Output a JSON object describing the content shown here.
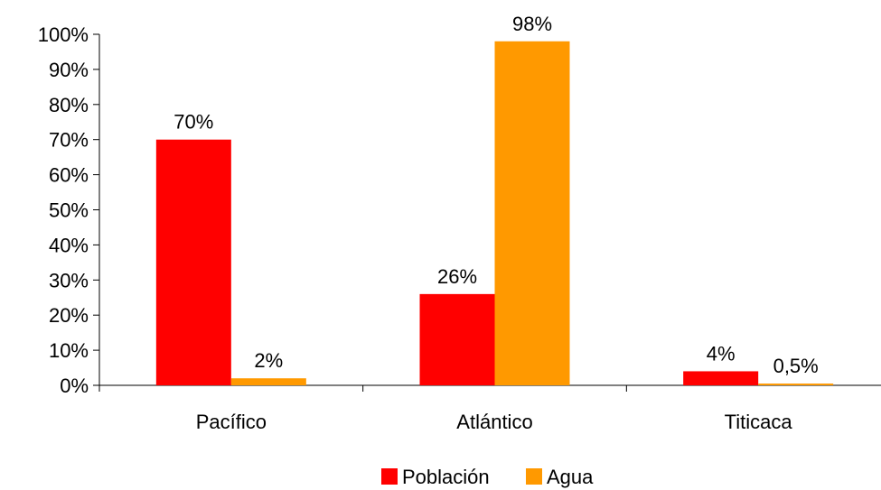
{
  "chart_data": {
    "type": "bar",
    "categories": [
      "Pacífico",
      "Atlántico",
      "Titicaca"
    ],
    "series": [
      {
        "name": "Población",
        "color": "#ff0000",
        "values": [
          70,
          26,
          4
        ],
        "labels": [
          "70%",
          "26%",
          "4%"
        ]
      },
      {
        "name": "Agua",
        "color": "#ff9900",
        "values": [
          2,
          98,
          0.5
        ],
        "labels": [
          "2%",
          "98%",
          "0,5%"
        ]
      }
    ],
    "ylim": [
      0,
      100
    ],
    "yticks": [
      0,
      10,
      20,
      30,
      40,
      50,
      60,
      70,
      80,
      90,
      100
    ],
    "ytick_labels": [
      "0%",
      "10%",
      "20%",
      "30%",
      "40%",
      "50%",
      "60%",
      "70%",
      "80%",
      "90%",
      "100%"
    ],
    "grid": false,
    "legend_position": "bottom"
  }
}
